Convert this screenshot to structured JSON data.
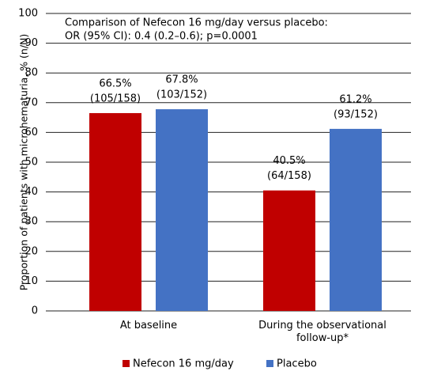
{
  "chart_data": {
    "type": "bar",
    "y_label": "Proportion of patients with microhematuria, % (n/N)",
    "annotations": [
      "Comparison of Nefecon 16 mg/day versus placebo:",
      "OR (95% CI): 0.4 (0.2–0.6); p=0.0001"
    ],
    "categories": [
      "At baseline",
      "During the observational follow-up*"
    ],
    "series": [
      {
        "name": "Nefecon 16 mg/day",
        "color": "#c00000",
        "values": [
          66.5,
          40.5
        ],
        "value_labels": [
          "66.5%",
          "40.5%"
        ],
        "counts": [
          "(105/158)",
          "(64/158)"
        ]
      },
      {
        "name": "Placebo",
        "color": "#4472c4",
        "values": [
          67.8,
          61.2
        ],
        "value_labels": [
          "67.8%",
          "61.2%"
        ],
        "counts": [
          "(103/152)",
          "(93/152)"
        ]
      }
    ],
    "ylim": [
      0,
      100
    ],
    "yticks": [
      0,
      10,
      20,
      30,
      40,
      50,
      60,
      70,
      80,
      90,
      100
    ],
    "grid": true,
    "legend": "bottom"
  }
}
